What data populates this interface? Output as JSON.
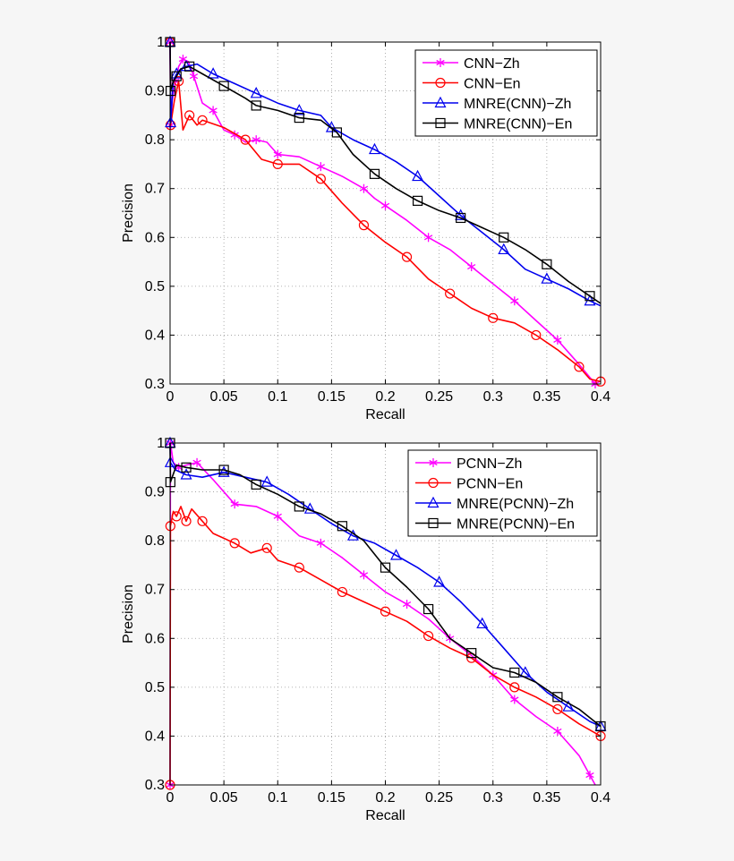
{
  "chart_data": [
    {
      "type": "line",
      "xlabel": "Recall",
      "ylabel": "Precision",
      "xlim": [
        0,
        0.4
      ],
      "ylim": [
        0.3,
        1
      ],
      "x_ticks": [
        "0",
        "0.05",
        "0.1",
        "0.15",
        "0.2",
        "0.25",
        "0.3",
        "0.35",
        "0.4"
      ],
      "y_ticks": [
        "0.3",
        "0.4",
        "0.5",
        "0.6",
        "0.7",
        "0.8",
        "0.9",
        "1"
      ],
      "grid": true,
      "legend_position": "top-right",
      "series": [
        {
          "name": "CNN−Zh",
          "color": "#ff00ff",
          "marker": "star",
          "points": [
            [
              0,
              1.0
            ],
            [
              0.0005,
              0.83
            ],
            [
              0.002,
              0.88
            ],
            [
              0.005,
              0.92
            ],
            [
              0.008,
              0.95
            ],
            [
              0.012,
              0.965
            ],
            [
              0.017,
              0.96
            ],
            [
              0.022,
              0.93
            ],
            [
              0.03,
              0.875
            ],
            [
              0.04,
              0.86
            ],
            [
              0.05,
              0.82
            ],
            [
              0.06,
              0.81
            ],
            [
              0.07,
              0.795
            ],
            [
              0.08,
              0.8
            ],
            [
              0.09,
              0.795
            ],
            [
              0.1,
              0.77
            ],
            [
              0.12,
              0.765
            ],
            [
              0.14,
              0.745
            ],
            [
              0.16,
              0.725
            ],
            [
              0.18,
              0.7
            ],
            [
              0.19,
              0.68
            ],
            [
              0.2,
              0.665
            ],
            [
              0.22,
              0.635
            ],
            [
              0.24,
              0.6
            ],
            [
              0.26,
              0.575
            ],
            [
              0.28,
              0.54
            ],
            [
              0.3,
              0.505
            ],
            [
              0.32,
              0.47
            ],
            [
              0.34,
              0.43
            ],
            [
              0.36,
              0.39
            ],
            [
              0.38,
              0.34
            ],
            [
              0.395,
              0.3
            ]
          ]
        },
        {
          "name": "CNN−En",
          "color": "#ff0000",
          "marker": "circle",
          "points": [
            [
              0,
              1.0
            ],
            [
              0.0005,
              0.83
            ],
            [
              0.004,
              0.88
            ],
            [
              0.008,
              0.92
            ],
            [
              0.012,
              0.82
            ],
            [
              0.018,
              0.85
            ],
            [
              0.025,
              0.83
            ],
            [
              0.03,
              0.84
            ],
            [
              0.05,
              0.825
            ],
            [
              0.07,
              0.8
            ],
            [
              0.085,
              0.76
            ],
            [
              0.1,
              0.75
            ],
            [
              0.12,
              0.75
            ],
            [
              0.14,
              0.72
            ],
            [
              0.16,
              0.67
            ],
            [
              0.18,
              0.625
            ],
            [
              0.2,
              0.59
            ],
            [
              0.22,
              0.56
            ],
            [
              0.24,
              0.515
            ],
            [
              0.26,
              0.485
            ],
            [
              0.28,
              0.455
            ],
            [
              0.3,
              0.435
            ],
            [
              0.32,
              0.425
            ],
            [
              0.34,
              0.4
            ],
            [
              0.36,
              0.37
            ],
            [
              0.38,
              0.335
            ],
            [
              0.39,
              0.31
            ],
            [
              0.4,
              0.305
            ]
          ]
        },
        {
          "name": "MNRE(CNN)−Zh",
          "color": "#0000ee",
          "marker": "triangle",
          "points": [
            [
              0,
              1.0
            ],
            [
              0.0005,
              0.835
            ],
            [
              0.003,
              0.92
            ],
            [
              0.006,
              0.935
            ],
            [
              0.01,
              0.945
            ],
            [
              0.015,
              0.95
            ],
            [
              0.025,
              0.955
            ],
            [
              0.04,
              0.935
            ],
            [
              0.06,
              0.915
            ],
            [
              0.08,
              0.895
            ],
            [
              0.1,
              0.875
            ],
            [
              0.12,
              0.86
            ],
            [
              0.14,
              0.85
            ],
            [
              0.15,
              0.825
            ],
            [
              0.17,
              0.8
            ],
            [
              0.19,
              0.78
            ],
            [
              0.21,
              0.755
            ],
            [
              0.23,
              0.725
            ],
            [
              0.25,
              0.685
            ],
            [
              0.27,
              0.645
            ],
            [
              0.29,
              0.61
            ],
            [
              0.31,
              0.575
            ],
            [
              0.33,
              0.535
            ],
            [
              0.35,
              0.515
            ],
            [
              0.37,
              0.495
            ],
            [
              0.39,
              0.47
            ],
            [
              0.4,
              0.46
            ]
          ]
        },
        {
          "name": "MNRE(CNN)−En",
          "color": "#000000",
          "marker": "square",
          "points": [
            [
              0,
              1.0
            ],
            [
              0.0005,
              0.9
            ],
            [
              0.003,
              0.92
            ],
            [
              0.006,
              0.93
            ],
            [
              0.01,
              0.945
            ],
            [
              0.018,
              0.95
            ],
            [
              0.03,
              0.935
            ],
            [
              0.05,
              0.91
            ],
            [
              0.07,
              0.885
            ],
            [
              0.08,
              0.87
            ],
            [
              0.1,
              0.86
            ],
            [
              0.12,
              0.845
            ],
            [
              0.14,
              0.84
            ],
            [
              0.155,
              0.815
            ],
            [
              0.17,
              0.77
            ],
            [
              0.19,
              0.73
            ],
            [
              0.21,
              0.7
            ],
            [
              0.23,
              0.675
            ],
            [
              0.25,
              0.655
            ],
            [
              0.27,
              0.64
            ],
            [
              0.29,
              0.62
            ],
            [
              0.31,
              0.6
            ],
            [
              0.33,
              0.575
            ],
            [
              0.35,
              0.545
            ],
            [
              0.37,
              0.51
            ],
            [
              0.39,
              0.48
            ],
            [
              0.4,
              0.465
            ]
          ]
        }
      ]
    },
    {
      "type": "line",
      "xlabel": "Recall",
      "ylabel": "Precision",
      "xlim": [
        0,
        0.4
      ],
      "ylim": [
        0.3,
        1
      ],
      "x_ticks": [
        "0",
        "0.05",
        "0.1",
        "0.15",
        "0.2",
        "0.25",
        "0.3",
        "0.35",
        "0.4"
      ],
      "y_ticks": [
        "0.3",
        "0.4",
        "0.5",
        "0.6",
        "0.7",
        "0.8",
        "0.9",
        "1"
      ],
      "grid": true,
      "legend_position": "top-right",
      "series": [
        {
          "name": "PCNN−Zh",
          "color": "#ff00ff",
          "marker": "star",
          "points": [
            [
              0,
              0.3
            ],
            [
              0.0003,
              1.0
            ],
            [
              0.003,
              0.96
            ],
            [
              0.008,
              0.95
            ],
            [
              0.015,
              0.955
            ],
            [
              0.025,
              0.96
            ],
            [
              0.04,
              0.925
            ],
            [
              0.06,
              0.875
            ],
            [
              0.08,
              0.87
            ],
            [
              0.1,
              0.85
            ],
            [
              0.12,
              0.81
            ],
            [
              0.14,
              0.795
            ],
            [
              0.16,
              0.765
            ],
            [
              0.18,
              0.73
            ],
            [
              0.2,
              0.695
            ],
            [
              0.22,
              0.67
            ],
            [
              0.24,
              0.64
            ],
            [
              0.26,
              0.6
            ],
            [
              0.28,
              0.565
            ],
            [
              0.3,
              0.525
            ],
            [
              0.31,
              0.5
            ],
            [
              0.32,
              0.475
            ],
            [
              0.34,
              0.44
            ],
            [
              0.36,
              0.41
            ],
            [
              0.38,
              0.36
            ],
            [
              0.39,
              0.32
            ],
            [
              0.395,
              0.3
            ]
          ]
        },
        {
          "name": "PCNN−En",
          "color": "#ff0000",
          "marker": "circle",
          "points": [
            [
              0,
              0.3
            ],
            [
              0.0003,
              0.83
            ],
            [
              0.003,
              0.86
            ],
            [
              0.006,
              0.85
            ],
            [
              0.01,
              0.87
            ],
            [
              0.015,
              0.84
            ],
            [
              0.02,
              0.865
            ],
            [
              0.03,
              0.84
            ],
            [
              0.04,
              0.815
            ],
            [
              0.06,
              0.795
            ],
            [
              0.075,
              0.775
            ],
            [
              0.09,
              0.785
            ],
            [
              0.1,
              0.76
            ],
            [
              0.12,
              0.745
            ],
            [
              0.14,
              0.72
            ],
            [
              0.16,
              0.695
            ],
            [
              0.18,
              0.675
            ],
            [
              0.2,
              0.655
            ],
            [
              0.22,
              0.635
            ],
            [
              0.24,
              0.605
            ],
            [
              0.26,
              0.58
            ],
            [
              0.28,
              0.56
            ],
            [
              0.3,
              0.525
            ],
            [
              0.32,
              0.5
            ],
            [
              0.34,
              0.48
            ],
            [
              0.36,
              0.455
            ],
            [
              0.38,
              0.425
            ],
            [
              0.4,
              0.4
            ]
          ]
        },
        {
          "name": "MNRE(PCNN)−Zh",
          "color": "#0000ee",
          "marker": "triangle",
          "points": [
            [
              0,
              1.0
            ],
            [
              0.0003,
              0.96
            ],
            [
              0.005,
              0.945
            ],
            [
              0.015,
              0.935
            ],
            [
              0.03,
              0.93
            ],
            [
              0.05,
              0.94
            ],
            [
              0.07,
              0.93
            ],
            [
              0.09,
              0.92
            ],
            [
              0.11,
              0.895
            ],
            [
              0.13,
              0.865
            ],
            [
              0.15,
              0.835
            ],
            [
              0.17,
              0.81
            ],
            [
              0.19,
              0.795
            ],
            [
              0.21,
              0.77
            ],
            [
              0.23,
              0.745
            ],
            [
              0.25,
              0.715
            ],
            [
              0.27,
              0.675
            ],
            [
              0.29,
              0.63
            ],
            [
              0.31,
              0.58
            ],
            [
              0.33,
              0.53
            ],
            [
              0.35,
              0.49
            ],
            [
              0.37,
              0.46
            ],
            [
              0.39,
              0.43
            ],
            [
              0.4,
              0.42
            ]
          ]
        },
        {
          "name": "MNRE(PCNN)−En",
          "color": "#000000",
          "marker": "square",
          "points": [
            [
              0,
              1.0
            ],
            [
              0.0003,
              0.92
            ],
            [
              0.006,
              0.955
            ],
            [
              0.015,
              0.95
            ],
            [
              0.03,
              0.945
            ],
            [
              0.05,
              0.945
            ],
            [
              0.065,
              0.935
            ],
            [
              0.08,
              0.915
            ],
            [
              0.1,
              0.895
            ],
            [
              0.12,
              0.87
            ],
            [
              0.14,
              0.855
            ],
            [
              0.16,
              0.83
            ],
            [
              0.18,
              0.8
            ],
            [
              0.2,
              0.745
            ],
            [
              0.22,
              0.705
            ],
            [
              0.24,
              0.66
            ],
            [
              0.26,
              0.6
            ],
            [
              0.28,
              0.57
            ],
            [
              0.3,
              0.54
            ],
            [
              0.32,
              0.53
            ],
            [
              0.34,
              0.51
            ],
            [
              0.36,
              0.48
            ],
            [
              0.38,
              0.455
            ],
            [
              0.4,
              0.42
            ]
          ]
        }
      ]
    }
  ]
}
